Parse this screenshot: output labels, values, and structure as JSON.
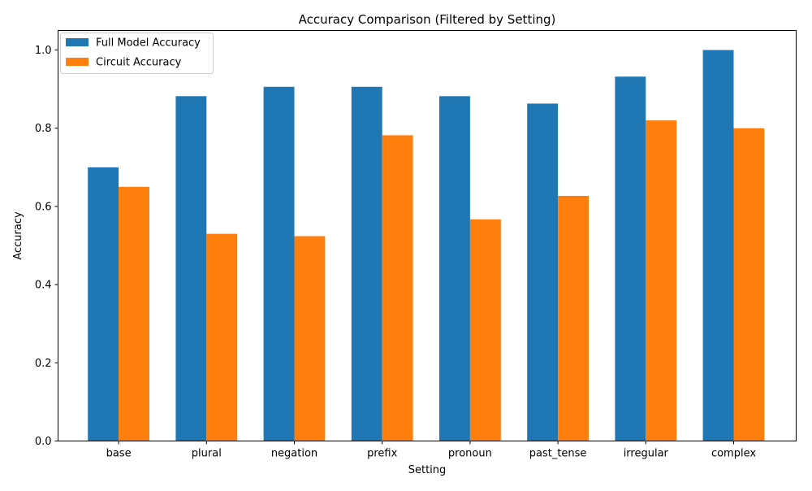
{
  "chart_data": {
    "type": "bar",
    "title": "Accuracy Comparison (Filtered by Setting)",
    "xlabel": "Setting",
    "ylabel": "Accuracy",
    "categories": [
      "base",
      "plural",
      "negation",
      "prefix",
      "pronoun",
      "past_tense",
      "irregular",
      "complex"
    ],
    "series": [
      {
        "name": "Full Model Accuracy",
        "color": "#1f77b4",
        "values": [
          0.7,
          0.882,
          0.906,
          0.906,
          0.882,
          0.863,
          0.932,
          1.0
        ]
      },
      {
        "name": "Circuit Accuracy",
        "color": "#ff7f0e",
        "values": [
          0.65,
          0.53,
          0.524,
          0.782,
          0.567,
          0.627,
          0.82,
          0.8
        ]
      }
    ],
    "ylim": [
      0,
      1.05
    ],
    "yticks": [
      "0.0",
      "0.2",
      "0.4",
      "0.6",
      "0.8",
      "1.0"
    ],
    "grid": false,
    "legend_position": "top-left"
  }
}
